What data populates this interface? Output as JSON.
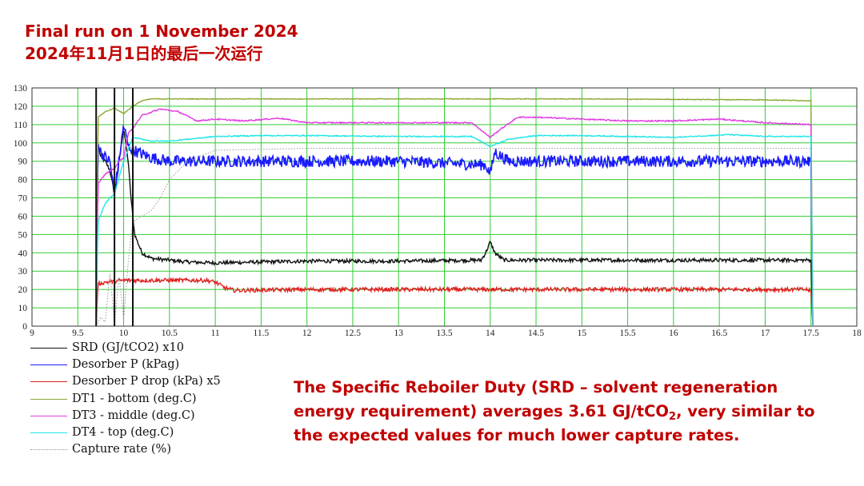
{
  "titles": {
    "line1": "Final run on 1 November 2024",
    "line2": "2024年11月1日的最后一次运行"
  },
  "note": {
    "part1": "The Specific Reboiler Duty (SRD – solvent regeneration energy requirement) averages 3.61 GJ/tCO",
    "sub": "2",
    "part2": ", very similar to the expected values for much lower capture rates."
  },
  "colors": {
    "title_red": "#c00000",
    "grid_green": "#33cc33",
    "SRD": "#111111",
    "Desorber P": "#1a1aff",
    "Desorber P drop": "#e02020",
    "DT1": "#8aa830",
    "DT3": "#e03ae0",
    "DT4": "#22e6e6",
    "Capture rate": "#999999"
  },
  "chart_data": {
    "type": "line",
    "xlim": [
      9,
      18
    ],
    "ylim": [
      0,
      130
    ],
    "x_ticks": [
      "9",
      "9.5",
      "10",
      "10.5",
      "11",
      "11.5",
      "12",
      "12.5",
      "13",
      "13.5",
      "14",
      "14.5",
      "15",
      "15.5",
      "16",
      "16.5",
      "17",
      "17.5",
      "18"
    ],
    "y_ticks": [
      "0",
      "10",
      "20",
      "30",
      "40",
      "50",
      "60",
      "70",
      "80",
      "90",
      "100",
      "110",
      "120",
      "130"
    ],
    "grid": true,
    "legend_position": "bottom-left",
    "vertical_markers_x": [
      9.7,
      9.9,
      10.1
    ],
    "series": [
      {
        "name": "SRD (GJ/tCO2) x10",
        "key": "SRD",
        "style": "solid",
        "noise": 1.0,
        "x": [
          9.7,
          9.72,
          9.75,
          9.8,
          9.85,
          9.9,
          9.95,
          10.0,
          10.05,
          10.08,
          10.12,
          10.2,
          10.3,
          10.5,
          10.7,
          11.0,
          11.5,
          12.0,
          13.0,
          13.9,
          13.95,
          14.0,
          14.05,
          14.15,
          14.5,
          15.0,
          16.0,
          17.0,
          17.5,
          17.52
        ],
        "y": [
          0,
          100,
          92,
          90,
          85,
          72,
          90,
          108,
          90,
          70,
          50,
          40,
          37,
          36,
          35,
          34.5,
          35,
          35.5,
          35.5,
          36,
          40,
          46,
          40,
          36,
          36,
          36,
          36,
          36,
          36,
          0
        ]
      },
      {
        "name": "Desorber P (kPag)",
        "key": "Desorber P",
        "style": "solid",
        "noise": 3.2,
        "x": [
          9.7,
          9.72,
          9.75,
          9.8,
          9.85,
          9.9,
          9.95,
          10.0,
          10.05,
          10.15,
          10.3,
          10.5,
          11.0,
          12.0,
          13.0,
          13.95,
          14.0,
          14.05,
          14.2,
          15.0,
          16.0,
          17.0,
          17.45,
          17.5,
          17.52
        ],
        "y": [
          0,
          100,
          95,
          92,
          90,
          72,
          90,
          110,
          98,
          95,
          92,
          90,
          90,
          90,
          90,
          88,
          83,
          95,
          90,
          90,
          90,
          90,
          90,
          90,
          0
        ]
      },
      {
        "name": "Desorber P drop (kPa) x5",
        "key": "Desorber P drop",
        "style": "solid",
        "noise": 1.1,
        "x": [
          9.7,
          9.72,
          9.8,
          10.0,
          10.5,
          10.9,
          11.0,
          11.1,
          11.2,
          12.0,
          13.0,
          14.0,
          15.0,
          16.0,
          17.0,
          17.45,
          17.5,
          17.52
        ],
        "y": [
          0,
          23,
          24,
          25,
          25,
          25,
          24,
          21,
          19.5,
          20,
          20,
          20,
          20,
          20,
          20,
          20,
          19,
          0
        ]
      },
      {
        "name": "DT1 - bottom (deg.C)",
        "key": "DT1",
        "style": "solid",
        "noise": 0.2,
        "x": [
          9.7,
          9.72,
          9.8,
          9.9,
          10.0,
          10.1,
          10.2,
          10.3,
          10.5,
          11.0,
          13.0,
          15.0,
          17.0,
          17.5,
          17.52
        ],
        "y": [
          0,
          114,
          117,
          119,
          116,
          120,
          123,
          124,
          124,
          124,
          124,
          124,
          123.5,
          123,
          0
        ]
      },
      {
        "name": "DT3 - middle (deg.C)",
        "key": "DT3",
        "style": "solid",
        "noise": 0.35,
        "x": [
          9.7,
          9.72,
          9.8,
          9.9,
          9.95,
          10.0,
          10.05,
          10.1,
          10.2,
          10.4,
          10.6,
          10.8,
          11.0,
          11.3,
          11.7,
          12.0,
          13.0,
          13.8,
          14.0,
          14.1,
          14.3,
          14.5,
          15.0,
          15.5,
          16.0,
          16.5,
          17.0,
          17.5,
          17.52
        ],
        "y": [
          0,
          78,
          83,
          86,
          90,
          92,
          105,
          108,
          115,
          118.5,
          117,
          112,
          113,
          112,
          113.5,
          111,
          111,
          111,
          103,
          107,
          114,
          114,
          113,
          112,
          112,
          113,
          111,
          110,
          0
        ]
      },
      {
        "name": "DT4 - top (deg.C)",
        "key": "DT4",
        "style": "solid",
        "noise": 0.3,
        "x": [
          9.7,
          9.72,
          9.8,
          9.85,
          9.9,
          10.0,
          10.1,
          10.3,
          10.5,
          11.0,
          11.5,
          12.0,
          13.0,
          13.8,
          14.0,
          14.1,
          14.2,
          14.5,
          15.0,
          16.0,
          16.6,
          17.0,
          17.5,
          17.52
        ],
        "y": [
          0,
          57,
          67,
          70,
          72,
          90,
          103,
          101,
          101,
          103.5,
          104,
          104,
          103.5,
          103.5,
          98,
          100,
          102,
          104,
          104,
          103,
          104.5,
          103.5,
          103.5,
          0
        ]
      },
      {
        "name": "Capture rate (%)",
        "key": "Capture rate",
        "style": "dotted",
        "noise": 0,
        "x": [
          9.7,
          9.75,
          9.8,
          9.85,
          9.9,
          9.95,
          10.0,
          10.05,
          10.1,
          10.2,
          10.3,
          10.4,
          10.5,
          10.7,
          11.0,
          12.0,
          13.0,
          14.0,
          15.0,
          16.0,
          17.0,
          17.5,
          17.52
        ],
        "y": [
          0,
          5,
          2,
          30,
          1,
          28,
          3,
          35,
          57,
          60,
          63,
          70,
          80,
          90,
          96,
          97,
          97,
          97,
          97,
          97,
          97,
          97,
          0
        ]
      }
    ]
  }
}
